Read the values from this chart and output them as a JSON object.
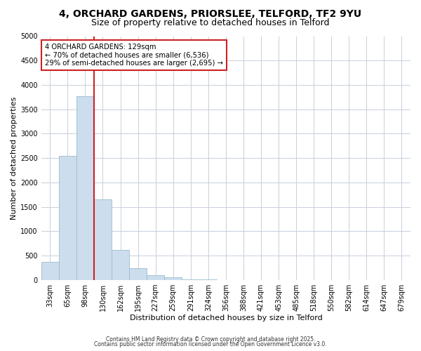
{
  "title_line1": "4, ORCHARD GARDENS, PRIORSLEE, TELFORD, TF2 9YU",
  "title_line2": "Size of property relative to detached houses in Telford",
  "xlabel": "Distribution of detached houses by size in Telford",
  "ylabel": "Number of detached properties",
  "bar_color": "#ccdded",
  "bar_edgecolor": "#9bbcce",
  "categories": [
    "33sqm",
    "65sqm",
    "98sqm",
    "130sqm",
    "162sqm",
    "195sqm",
    "227sqm",
    "259sqm",
    "291sqm",
    "324sqm",
    "356sqm",
    "388sqm",
    "421sqm",
    "453sqm",
    "485sqm",
    "518sqm",
    "550sqm",
    "582sqm",
    "614sqm",
    "647sqm",
    "679sqm"
  ],
  "values": [
    380,
    2550,
    3770,
    1660,
    620,
    240,
    95,
    50,
    15,
    10,
    0,
    0,
    0,
    0,
    0,
    0,
    0,
    0,
    0,
    0,
    0
  ],
  "ylim": [
    0,
    5000
  ],
  "yticks": [
    0,
    500,
    1000,
    1500,
    2000,
    2500,
    3000,
    3500,
    4000,
    4500,
    5000
  ],
  "vline_color": "#cc2222",
  "annotation_title": "4 ORCHARD GARDENS: 129sqm",
  "annotation_line2": "← 70% of detached houses are smaller (6,536)",
  "annotation_line3": "29% of semi-detached houses are larger (2,695) →",
  "annotation_box_facecolor": "#ffffff",
  "annotation_box_edgecolor": "#cc2222",
  "footer_line1": "Contains HM Land Registry data © Crown copyright and database right 2025.",
  "footer_line2": "Contains public sector information licensed under the Open Government Licence v3.0.",
  "background_color": "#ffffff",
  "grid_color": "#c8d0dc",
  "title_fontsize": 10,
  "subtitle_fontsize": 9,
  "tick_fontsize": 7,
  "ylabel_fontsize": 8,
  "xlabel_fontsize": 8
}
